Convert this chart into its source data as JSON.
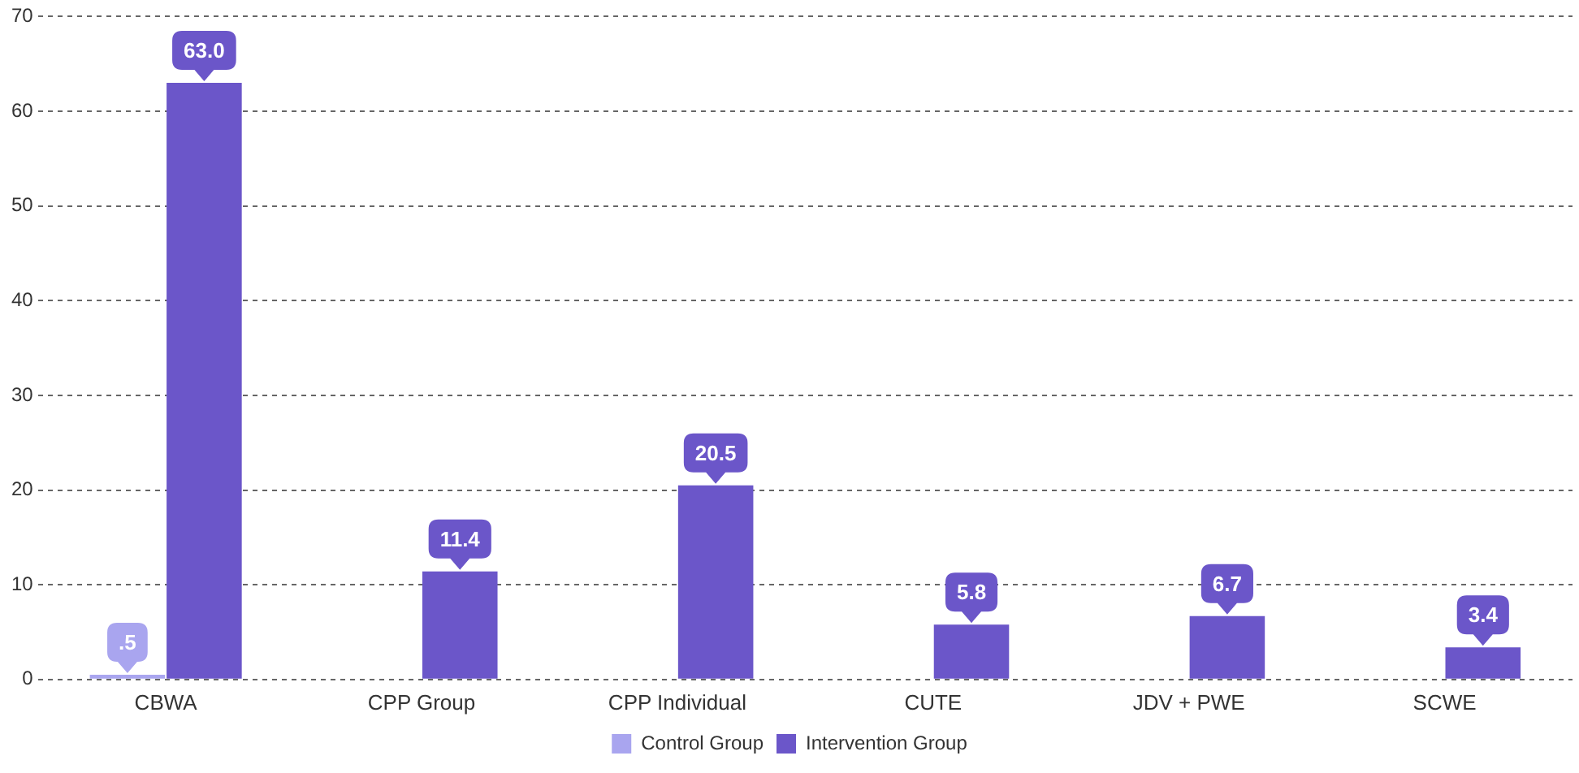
{
  "chart_data": {
    "type": "bar",
    "categories": [
      "CBWA",
      "CPP Group",
      "CPP Individual",
      "CUTE",
      "JDV + PWE",
      "SCWE"
    ],
    "series": [
      {
        "name": "Control Group",
        "color": "#a9a5ef",
        "values": [
          0.5,
          null,
          null,
          null,
          null,
          null
        ],
        "value_labels": [
          ".5",
          null,
          null,
          null,
          null,
          null
        ]
      },
      {
        "name": "Intervention Group",
        "color": "#6b56c9",
        "values": [
          63.0,
          11.4,
          20.5,
          5.8,
          6.7,
          3.4
        ],
        "value_labels": [
          "63.0",
          "11.4",
          "20.5",
          "5.8",
          "6.7",
          "3.4"
        ]
      }
    ],
    "ylim": [
      0,
      70
    ],
    "yticks": [
      0,
      10,
      20,
      30,
      40,
      50,
      60,
      70
    ],
    "grid": "y",
    "legend": "bottom"
  }
}
